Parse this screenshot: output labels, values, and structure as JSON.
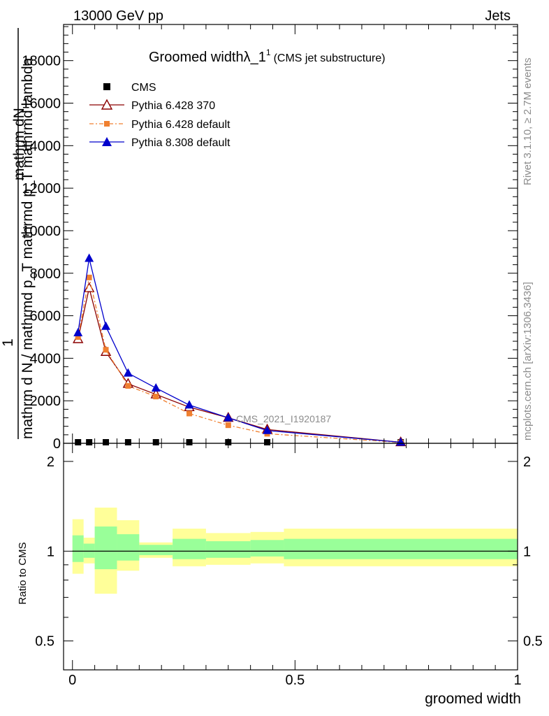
{
  "header": {
    "left": "13000 GeV pp",
    "right": "Jets"
  },
  "side_text": {
    "top": "Rivet 3.1.10, ≥ 2.7M events",
    "bottom": "mcplots.cern.ch [arXiv:1306.3436]"
  },
  "watermark": "CMS_2021_I1920187",
  "title": {
    "main": "Groomed width",
    "symbol": "λ_1",
    "sup": "1",
    "note": "(CMS jet substructure)"
  },
  "ylabel": {
    "num": "1",
    "num2": "mathrm dN",
    "den": "mathrm d N / mathrmd p_T mathrmd p_T mathrmd lambda",
    "sub_num": "T",
    "sub_den": "T"
  },
  "ratio_ylabel": "Ratio to CMS",
  "xlabel": "groomed width",
  "legend": [
    {
      "name": "CMS",
      "color": "#000000"
    },
    {
      "name": "Pythia 6.428 370",
      "color": "#8b0000"
    },
    {
      "name": "Pythia 6.428 default",
      "color": "#f08030"
    },
    {
      "name": "Pythia 8.308 default",
      "color": "#0000cc"
    }
  ],
  "chart_data": {
    "type": "line",
    "x_range": [
      -0.02,
      1.0
    ],
    "main_ylim": [
      0,
      19700
    ],
    "y_ticks": [
      0,
      2000,
      4000,
      6000,
      8000,
      10000,
      12000,
      14000,
      16000,
      18000
    ],
    "y_tick_labels": [
      "0",
      "2000",
      "4000",
      "6000",
      "8000",
      "10000",
      "12000",
      "14000",
      "16000",
      "18000"
    ],
    "x_ticks": [
      0,
      0.5,
      1
    ],
    "x_tick_labels": [
      "0",
      "0.5",
      "1"
    ],
    "ratio_ylim": [
      0.4,
      2.3
    ],
    "ratio_ticks": [
      0.5,
      1,
      2
    ],
    "ratio_tick_labels": [
      "0.5",
      "1",
      "2"
    ],
    "bin_edges": [
      0,
      0.025,
      0.05,
      0.1,
      0.15,
      0.225,
      0.3,
      0.4,
      0.475,
      1.0
    ],
    "bin_centers": [
      0.0125,
      0.0375,
      0.075,
      0.125,
      0.1875,
      0.2625,
      0.35,
      0.4375,
      0.7375
    ],
    "series": [
      {
        "name": "CMS",
        "values": [
          50,
          50,
          50,
          50,
          50,
          50,
          50,
          50,
          50
        ],
        "marker": "square",
        "color": "#000000"
      },
      {
        "name": "Pythia 6.428 370",
        "values": [
          4900,
          7300,
          4300,
          2800,
          2300,
          1700,
          1200,
          650,
          50
        ],
        "marker": "triangle-open",
        "color": "#8b0000"
      },
      {
        "name": "Pythia 6.428 default",
        "values": [
          5000,
          7800,
          4400,
          2700,
          2200,
          1400,
          850,
          450,
          40
        ],
        "marker": "square-small",
        "color": "#f08030"
      },
      {
        "name": "Pythia 8.308 default",
        "values": [
          5200,
          8700,
          5500,
          3300,
          2600,
          1800,
          1200,
          600,
          50
        ],
        "marker": "triangle",
        "color": "#0000cc"
      }
    ],
    "ratio_band_green": [
      [
        0.92,
        1.13
      ],
      [
        0.95,
        1.06
      ],
      [
        0.87,
        1.21
      ],
      [
        0.93,
        1.14
      ],
      [
        0.97,
        1.05
      ],
      [
        0.94,
        1.1
      ],
      [
        0.95,
        1.08
      ],
      [
        0.96,
        1.09
      ],
      [
        0.94,
        1.1
      ]
    ],
    "ratio_band_yellow": [
      [
        0.84,
        1.28
      ],
      [
        0.91,
        1.11
      ],
      [
        0.72,
        1.4
      ],
      [
        0.86,
        1.27
      ],
      [
        0.95,
        1.07
      ],
      [
        0.89,
        1.19
      ],
      [
        0.9,
        1.15
      ],
      [
        0.91,
        1.16
      ],
      [
        0.89,
        1.19
      ]
    ]
  }
}
